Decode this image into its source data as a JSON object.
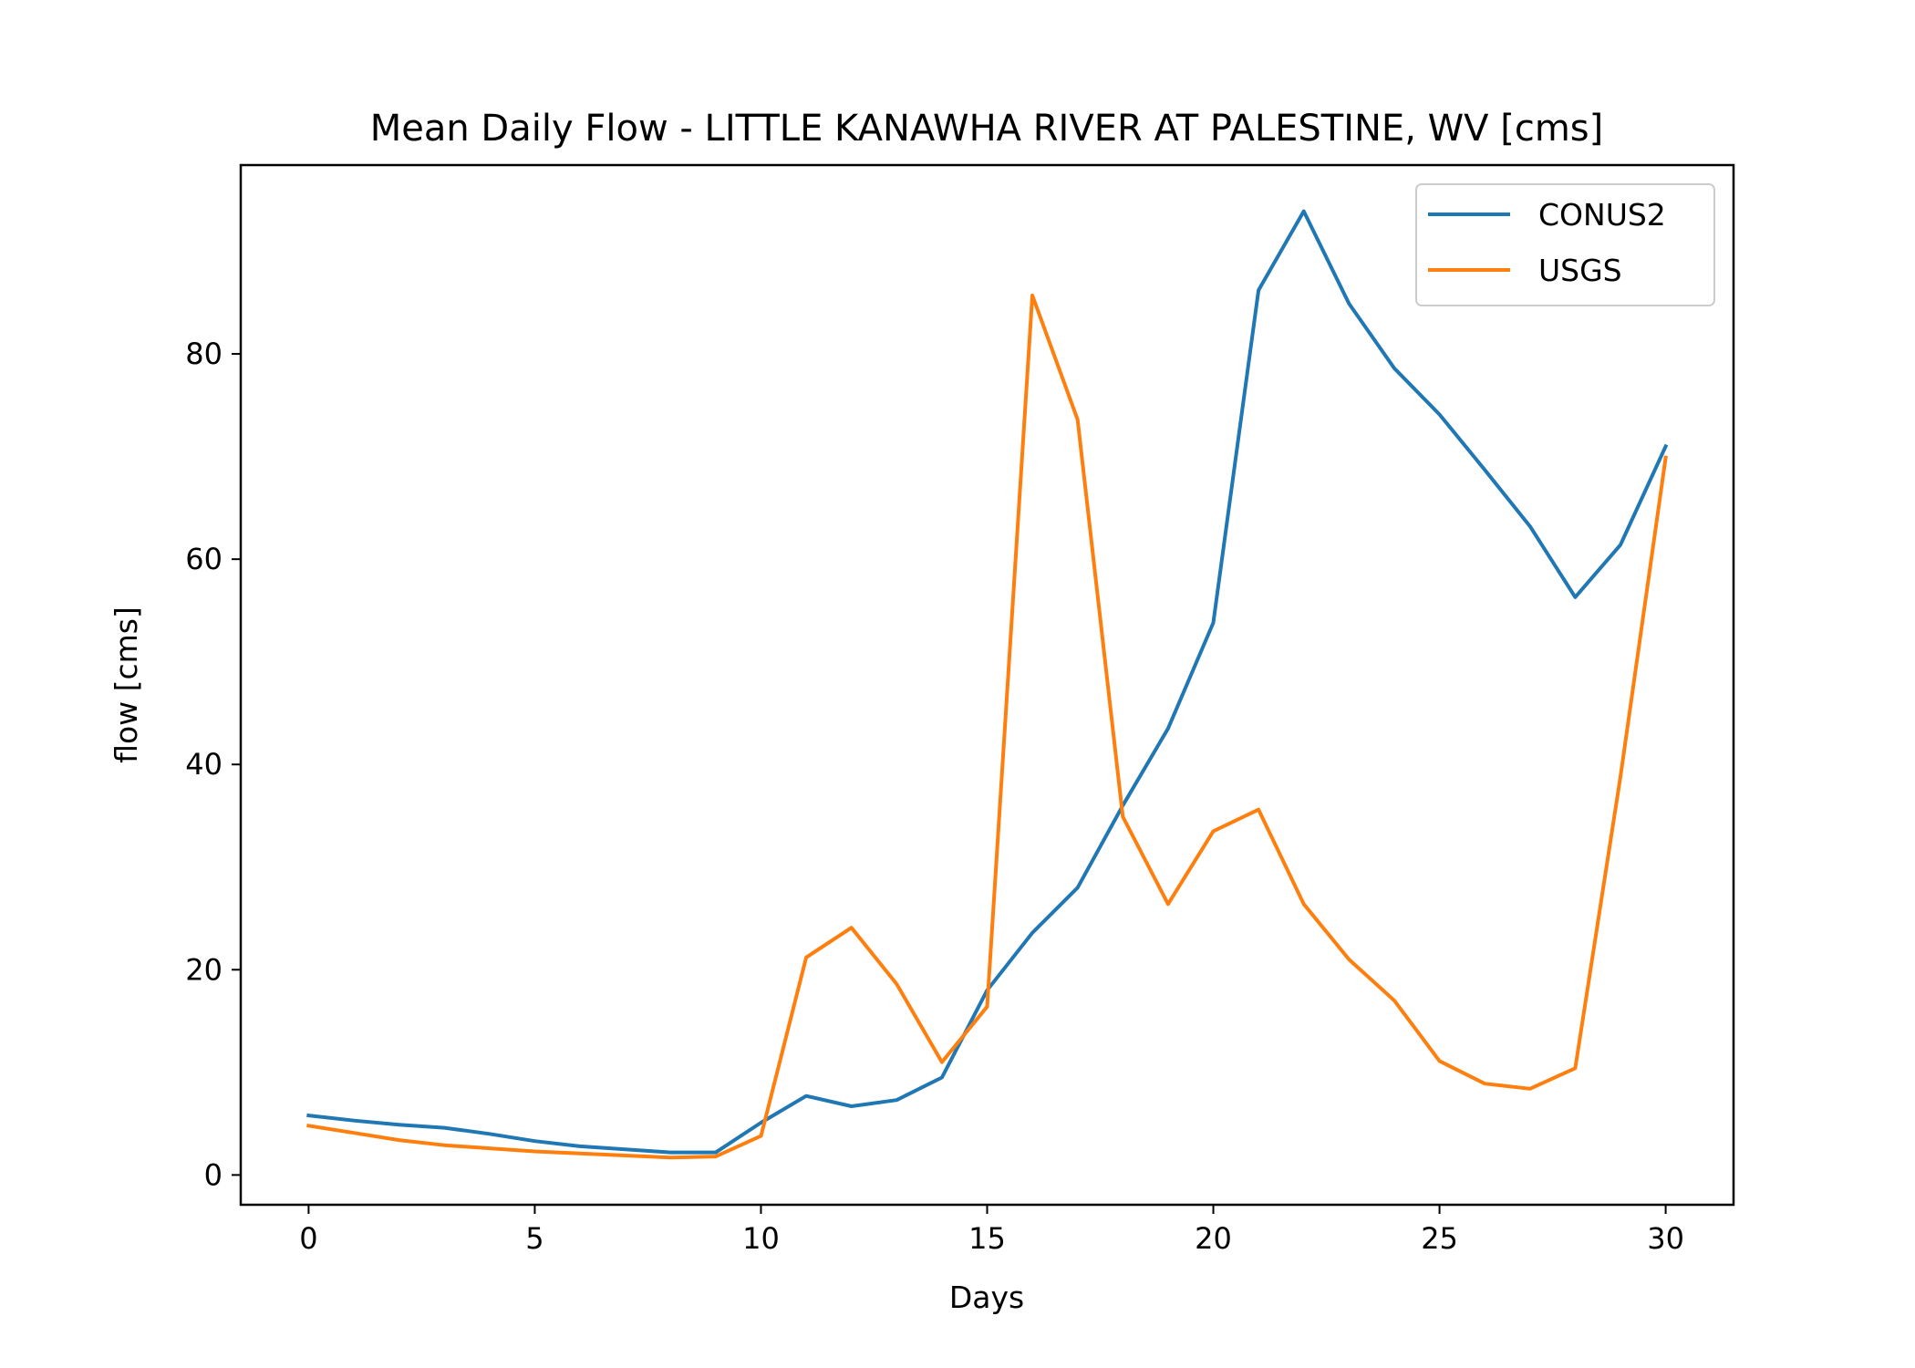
{
  "chart_data": {
    "type": "line",
    "title": "Mean Daily Flow - LITTLE KANAWHA RIVER AT PALESTINE, WV [cms]",
    "xlabel": "Days",
    "ylabel": "flow [cms]",
    "xlim": [
      -1.5,
      31.5
    ],
    "ylim": [
      -2.9,
      98.4
    ],
    "xticks": [
      0,
      5,
      10,
      15,
      20,
      25,
      30
    ],
    "yticks": [
      0,
      20,
      40,
      60,
      80
    ],
    "grid": false,
    "legend_position": "top-right",
    "x": [
      0,
      1,
      2,
      3,
      4,
      5,
      6,
      7,
      8,
      9,
      10,
      11,
      12,
      13,
      14,
      15,
      16,
      17,
      18,
      19,
      20,
      21,
      22,
      23,
      24,
      25,
      26,
      27,
      28,
      29,
      30
    ],
    "series": [
      {
        "name": "CONUS2",
        "color": "#1f77b4",
        "values": [
          5.8,
          5.3,
          4.9,
          4.6,
          4.0,
          3.3,
          2.8,
          2.5,
          2.2,
          2.2,
          5.1,
          7.7,
          6.7,
          7.3,
          9.5,
          18.0,
          23.6,
          28.0,
          36.0,
          43.5,
          53.8,
          86.2,
          93.9,
          84.9,
          78.6,
          74.1,
          68.7,
          63.2,
          56.3,
          61.4,
          71.0
        ]
      },
      {
        "name": "USGS",
        "color": "#ff7f0e",
        "values": [
          4.8,
          4.1,
          3.4,
          2.9,
          2.6,
          2.3,
          2.1,
          1.9,
          1.7,
          1.8,
          3.8,
          21.2,
          24.1,
          18.6,
          11.0,
          16.4,
          85.7,
          73.6,
          34.9,
          26.4,
          33.5,
          35.6,
          26.4,
          21.0,
          17.0,
          11.1,
          8.9,
          8.4,
          10.4,
          38.8,
          69.9
        ]
      }
    ]
  }
}
